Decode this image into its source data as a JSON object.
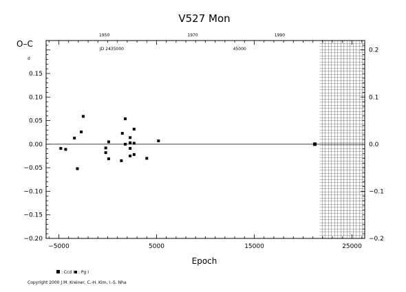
{
  "chart_data": {
    "type": "scatter",
    "title": "V527 Mon",
    "ylabel": "O–C",
    "ylabel_unit": "d",
    "xlabel": "Epoch",
    "xlim": [
      -6300,
      26300
    ],
    "ylim": [
      -0.2,
      0.22
    ],
    "x_ticks": [
      -5000,
      5000,
      15000,
      25000
    ],
    "x_tick_labels": [
      "−5000",
      "5000",
      "15000",
      "25000"
    ],
    "y_ticks": [
      -0.2,
      -0.15,
      -0.1,
      -0.05,
      0.0,
      0.05,
      0.1,
      0.15
    ],
    "y_tick_labels": [
      "−0.20",
      "−0.15",
      "−0.10",
      "−0.05",
      "0.00",
      "0.05",
      "0.10",
      "0.15"
    ],
    "y_right_ticks": [
      -0.2,
      -0.1,
      0.0,
      0.1,
      0.2
    ],
    "y_right_tick_labels": [
      "−0.2",
      "−0.1",
      "0.0",
      "0.1",
      "0.2"
    ],
    "top_year_ticks": [
      1950,
      1970,
      1990
    ],
    "top_year_epochs": [
      -340,
      8700,
      17600
    ],
    "top_jd_label": "JD 2435000",
    "top_jd_label_epoch": 0,
    "top_jd_label2": "45000",
    "top_jd_label2_epoch": 13500,
    "zero_line": 0.0,
    "hatched_region_from": 21700,
    "grid": false,
    "legend_position": "bottom-left",
    "legend": [
      {
        "label": ": Ccd I",
        "marker": "large-square"
      },
      {
        "label": ": Pg I",
        "marker": "small-square"
      }
    ],
    "series": [
      {
        "marker": "small-square",
        "points": [
          [
            -4800,
            -0.009
          ],
          [
            -4300,
            -0.011
          ],
          [
            -3400,
            0.013
          ],
          [
            -3100,
            -0.052
          ],
          [
            -2700,
            0.026
          ],
          [
            -2500,
            0.059
          ],
          [
            -200,
            -0.018
          ],
          [
            -200,
            -0.008
          ],
          [
            100,
            0.005
          ],
          [
            100,
            -0.031
          ],
          [
            1400,
            -0.035
          ],
          [
            1500,
            0.023
          ],
          [
            1800,
            0.054
          ],
          [
            1800,
            0.0
          ],
          [
            2300,
            0.014
          ],
          [
            2300,
            0.003
          ],
          [
            2300,
            -0.009
          ],
          [
            2300,
            -0.025
          ],
          [
            2700,
            0.032
          ],
          [
            2700,
            0.002
          ],
          [
            2700,
            -0.022
          ],
          [
            4000,
            -0.03
          ],
          [
            5200,
            0.007
          ]
        ]
      },
      {
        "marker": "large-square",
        "points": [
          [
            21200,
            0.0
          ]
        ]
      }
    ]
  },
  "footer": {
    "copyright": "Copyright 2000 J.M. Kreiner, C.-H. Kim, I.-S. Nha"
  }
}
